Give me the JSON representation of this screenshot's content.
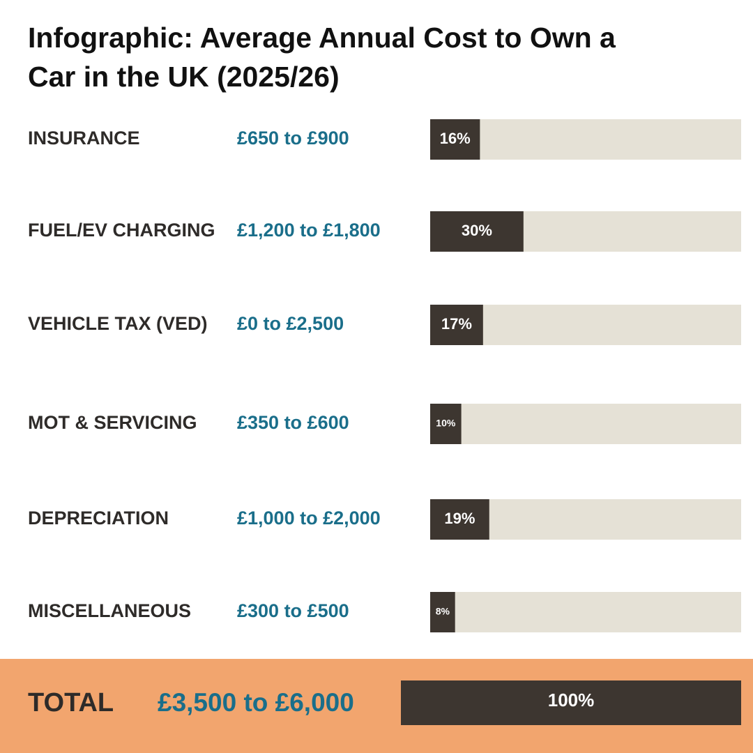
{
  "chart_data": {
    "type": "bar",
    "title": "Infographic: Average Annual Cost to Own a Car in the UK (2025/26)",
    "categories": [
      "INSURANCE",
      "FUEL/EV CHARGING",
      "VEHICLE TAX (VED)",
      "MOT & SERVICING",
      "DEPRECIATION",
      "MISCELLANEOUS"
    ],
    "ranges": [
      "£650 to £900",
      "£1,200 to £1,800",
      "£0 to £2,500",
      "£350 to £600",
      "£1,000 to £2,000",
      "£300 to £500"
    ],
    "values": [
      16,
      30,
      17,
      10,
      19,
      8
    ],
    "value_labels": [
      "16%",
      "30%",
      "17%",
      "10%",
      "19%",
      "8%"
    ],
    "xlim": [
      0,
      100
    ],
    "color": "#3d3630",
    "track_color": "#e5e1d6",
    "range_color": "#1a6e8a",
    "total": {
      "label": "TOTAL",
      "range": "£3,500 to £6,000",
      "value": 100,
      "value_label": "100%",
      "background": "#f2a56e"
    }
  }
}
